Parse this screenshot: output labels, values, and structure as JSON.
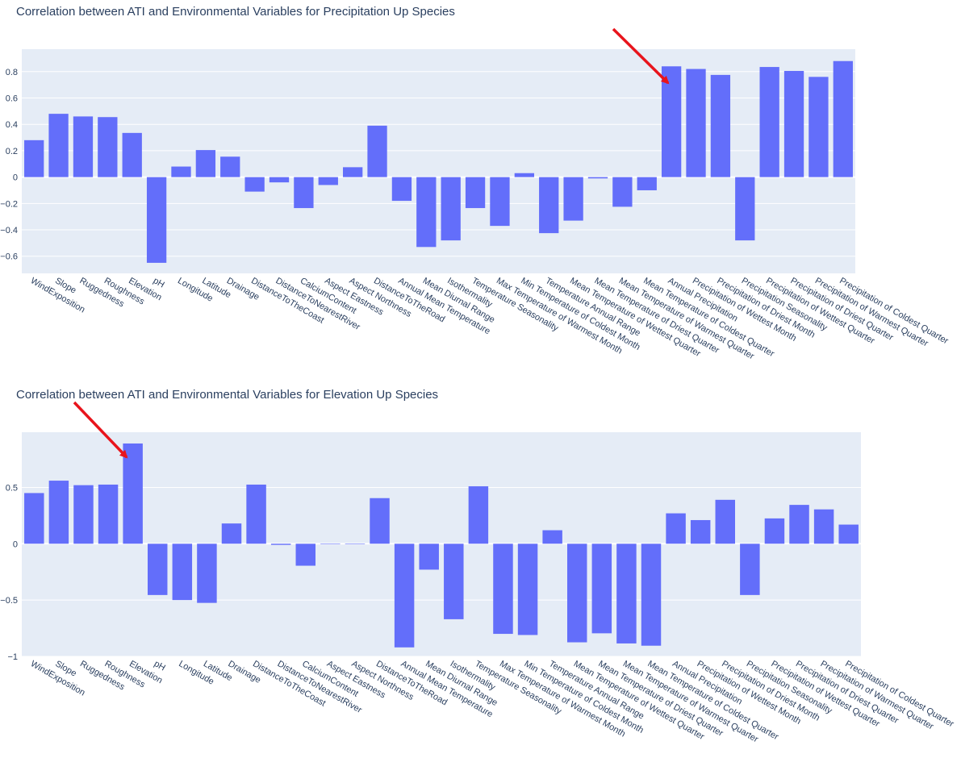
{
  "chart_data": [
    {
      "type": "bar",
      "title": "Correlation between ATI and Environmental Variables for Precipitation Up Species",
      "xlabel": "",
      "ylabel": "",
      "ylim": [
        -0.73,
        0.97
      ],
      "yticks": [
        -0.6,
        -0.4,
        -0.2,
        0,
        0.2,
        0.4,
        0.6,
        0.8
      ],
      "ytick_labels": [
        "−0.6",
        "−0.4",
        "−0.2",
        "0",
        "0.2",
        "0.4",
        "0.6",
        "0.8"
      ],
      "grid": true,
      "bar_color": "#636efa",
      "plot_bgcolor": "#e5ecf6",
      "categories": [
        "WindExposition",
        "Slope",
        "Ruggedness",
        "Roughness",
        "Elevation",
        "pH",
        "Longitude",
        "Latitude",
        "Drainage",
        "DistanceToTheCoast",
        "DistanceToNearestRiver",
        "CalciumContent",
        "Aspect Eastness",
        "Aspect Northness",
        "DistanceToTheRoad",
        "Annual Mean Temperature",
        "Mean Diurnal Range",
        "Isothermality",
        "Temperature Seasonality",
        "Max Temperature of Warmest Month",
        "Min Temperature of Coldest Month",
        "Temperature Annual Range",
        "Mean Temperature of Wettest Quarter",
        "Mean Temperature of Driest Quarter",
        "Mean Temperature of Warmest Quarter",
        "Mean Temperature of Coldest Quarter",
        "Annual Precipitation",
        "Precipitation of Wettest Month",
        "Precipitation of Driest Month",
        "Precipitation Seasonality",
        "Precipitation of Wettest Quarter",
        "Precipitation of Driest Quarter",
        "Precipitation of Warmest Quarter",
        "Precipitation of Coldest Quarter"
      ],
      "values": [
        0.28,
        0.48,
        0.46,
        0.455,
        0.335,
        -0.65,
        0.08,
        0.205,
        0.155,
        -0.11,
        -0.04,
        -0.235,
        -0.06,
        0.075,
        0.39,
        -0.18,
        -0.53,
        -0.48,
        -0.235,
        -0.37,
        0.03,
        -0.425,
        -0.33,
        -0.01,
        -0.225,
        -0.1,
        0.84,
        0.82,
        0.775,
        -0.48,
        0.835,
        0.805,
        0.76,
        0.88
      ]
    },
    {
      "type": "bar",
      "title": "Correlation between ATI and Environmental Variables for Elevation Up Species",
      "xlabel": "",
      "ylabel": "",
      "ylim": [
        -1.0,
        0.99
      ],
      "yticks": [
        -1,
        -0.5,
        0,
        0.5
      ],
      "ytick_labels": [
        "−1",
        "−0.5",
        "0",
        "0.5"
      ],
      "grid": true,
      "bar_color": "#636efa",
      "plot_bgcolor": "#e5ecf6",
      "categories": [
        "WindExposition",
        "Slope",
        "Ruggedness",
        "Roughness",
        "Elevation",
        "pH",
        "Longitude",
        "Latitude",
        "Drainage",
        "DistanceToTheCoast",
        "DistanceToNearestRiver",
        "CalciumContent",
        "Aspect Eastness",
        "Aspect Northness",
        "DistanceToTheRoad",
        "Annual Mean Temperature",
        "Mean Diurnal Range",
        "Isothermality",
        "Temperature Seasonality",
        "Max Temperature of Warmest Month",
        "Min Temperature of Coldest Month",
        "Temperature Annual Range",
        "Mean Temperature of Wettest Quarter",
        "Mean Temperature of Driest Quarter",
        "Mean Temperature of Warmest Quarter",
        "Mean Temperature of Coldest Quarter",
        "Annual Precipitation",
        "Precipitation of Wettest Month",
        "Precipitation of Driest Month",
        "Precipitation Seasonality",
        "Precipitation of Wettest Quarter",
        "Precipitation of Driest Quarter",
        "Precipitation of Warmest Quarter",
        "Precipitation of Coldest Quarter"
      ],
      "values": [
        0.45,
        0.56,
        0.52,
        0.525,
        0.89,
        -0.455,
        -0.5,
        -0.525,
        0.18,
        0.525,
        -0.01,
        -0.195,
        0.0,
        0.0,
        0.405,
        -0.92,
        -0.23,
        -0.67,
        0.51,
        -0.8,
        -0.81,
        0.12,
        -0.875,
        -0.795,
        -0.885,
        -0.905,
        0.27,
        0.21,
        0.39,
        -0.455,
        0.225,
        0.345,
        0.305,
        0.17
      ]
    }
  ],
  "annotations": {
    "arrow_color": "#e8141c"
  }
}
